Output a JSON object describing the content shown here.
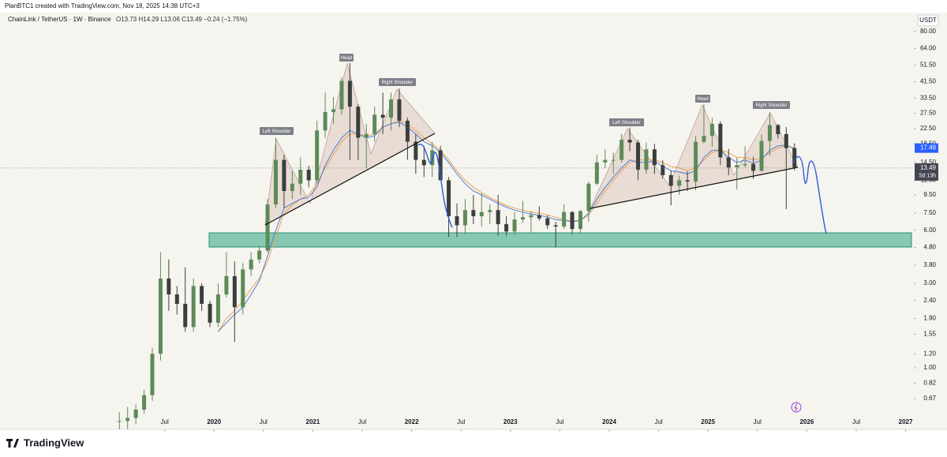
{
  "header": {
    "author_line": "PlanBTC1 created with TradingView.com, Nov 18, 2025 14:38 UTC+3",
    "symbol": "ChainLink / TetherUS · 1W · Binance",
    "ohlc": "O13.73 H14.29 L13.06 C13.49 −0.24 (−1.75%)",
    "currency": "USDT",
    "logo": "TradingView"
  },
  "chart_data": {
    "type": "candlestick",
    "log_scale": true,
    "up_color": "#5d8a58",
    "down_color": "#3b3f3c",
    "ylim": [
      0.545,
      98
    ],
    "yticks": [
      {
        "value": 80,
        "label": "80.00"
      },
      {
        "value": 64,
        "label": "64.00"
      },
      {
        "value": 51.5,
        "label": "51.50"
      },
      {
        "value": 41.5,
        "label": "41.50"
      },
      {
        "value": 33.5,
        "label": "33.50"
      },
      {
        "value": 27.5,
        "label": "27.50"
      },
      {
        "value": 22.5,
        "label": "22.50"
      },
      {
        "value": 18.5,
        "label": "18.50"
      },
      {
        "value": 14.5,
        "label": "14.50"
      },
      {
        "value": 11.5,
        "label": "11.50"
      },
      {
        "value": 9.5,
        "label": "9.50"
      },
      {
        "value": 7.5,
        "label": "7.50"
      },
      {
        "value": 6,
        "label": "6.00"
      },
      {
        "value": 4.8,
        "label": "4.80"
      },
      {
        "value": 3.8,
        "label": "3.80"
      },
      {
        "value": 3,
        "label": "3.00"
      },
      {
        "value": 2.4,
        "label": "2.40"
      },
      {
        "value": 1.9,
        "label": "1.90"
      },
      {
        "value": 1.55,
        "label": "1.55"
      },
      {
        "value": 1.2,
        "label": "1.20"
      },
      {
        "value": 1,
        "label": "1.00"
      },
      {
        "value": 0.82,
        "label": "0.82"
      },
      {
        "value": 0.67,
        "label": "0.67"
      }
    ],
    "xlim": [
      "2017-11",
      "2027-02"
    ],
    "xticks": [
      {
        "value": "2019-07",
        "label": "Jul"
      },
      {
        "value": "2020-01",
        "label": "2020"
      },
      {
        "value": "2020-07",
        "label": "Jul"
      },
      {
        "value": "2021-01",
        "label": "2021"
      },
      {
        "value": "2021-07",
        "label": "Jul"
      },
      {
        "value": "2022-01",
        "label": "2022"
      },
      {
        "value": "2022-07",
        "label": "Jul"
      },
      {
        "value": "2023-01",
        "label": "2023"
      },
      {
        "value": "2023-07",
        "label": "Jul"
      },
      {
        "value": "2024-01",
        "label": "2024"
      },
      {
        "value": "2024-07",
        "label": "Jul"
      },
      {
        "value": "2025-01",
        "label": "2025"
      },
      {
        "value": "2025-07",
        "label": "Jul"
      },
      {
        "value": "2026-01",
        "label": "2026"
      },
      {
        "value": "2026-07",
        "label": "Jul"
      },
      {
        "value": "2027-01",
        "label": "2027"
      }
    ],
    "x": [
      "2019-01",
      "2019-02",
      "2019-03",
      "2019-04",
      "2019-05",
      "2019-06",
      "2019-07",
      "2019-08",
      "2019-09",
      "2019-10",
      "2019-11",
      "2019-12",
      "2020-01",
      "2020-02",
      "2020-03",
      "2020-04",
      "2020-05",
      "2020-06",
      "2020-07",
      "2020-08",
      "2020-09",
      "2020-10",
      "2020-11",
      "2020-12",
      "2021-01",
      "2021-02",
      "2021-03",
      "2021-04",
      "2021-05",
      "2021-06",
      "2021-07",
      "2021-08",
      "2021-09",
      "2021-10",
      "2021-11",
      "2021-12",
      "2022-01",
      "2022-02",
      "2022-03",
      "2022-04",
      "2022-05",
      "2022-06",
      "2022-07",
      "2022-08",
      "2022-09",
      "2022-10",
      "2022-11",
      "2022-12",
      "2023-01",
      "2023-02",
      "2023-03",
      "2023-04",
      "2023-05",
      "2023-06",
      "2023-07",
      "2023-08",
      "2023-09",
      "2023-10",
      "2023-11",
      "2023-12",
      "2024-01",
      "2024-02",
      "2024-03",
      "2024-04",
      "2024-05",
      "2024-06",
      "2024-07",
      "2024-08",
      "2024-09",
      "2024-10",
      "2024-11",
      "2024-12",
      "2025-01",
      "2025-02",
      "2025-03",
      "2025-04",
      "2025-05",
      "2025-06",
      "2025-07",
      "2025-08",
      "2025-09",
      "2025-10",
      "2025-11"
    ],
    "open": [
      0.5,
      0.5,
      0.52,
      0.58,
      0.7,
      1.2,
      3.2,
      2.6,
      2.3,
      1.7,
      2.9,
      2.3,
      1.8,
      2.6,
      3.3,
      2.2,
      3.6,
      4.1,
      4.6,
      8.4,
      15,
      10,
      11,
      13.2,
      11.5,
      22,
      28,
      29,
      42,
      30,
      20,
      21,
      27,
      26,
      33,
      25,
      19,
      15,
      14,
      17,
      11.5,
      7.2,
      6.4,
      7.8,
      7.2,
      7.6,
      7.8,
      6.5,
      5.9,
      6.9,
      7.1,
      7.3,
      7.0,
      6.4,
      6.3,
      7.6,
      6.1,
      7.7,
      11.0,
      14.5,
      15.0,
      15.0,
      19.5,
      18.8,
      13.2,
      17.2,
      14.0,
      12.3,
      10.7,
      11.5,
      11.3,
      19.0,
      20.5,
      24,
      15.5,
      13.6,
      14.0,
      14.2,
      13.0,
      19.2,
      23.6,
      21.0,
      17.5
    ],
    "high": [
      0.56,
      0.6,
      0.62,
      0.75,
      1.3,
      4.5,
      4.1,
      2.9,
      3.7,
      3.2,
      3.0,
      2.4,
      3.0,
      4.5,
      4.0,
      3.9,
      4.5,
      4.9,
      9.0,
      20,
      16,
      13,
      15.5,
      13.9,
      25,
      36,
      34,
      44,
      53,
      31,
      24,
      30,
      36,
      36,
      38,
      26,
      21,
      18,
      19,
      18,
      12,
      8.5,
      9,
      9.5,
      9.7,
      8.4,
      9.5,
      7.2,
      7.6,
      8.8,
      7.7,
      8.2,
      7.3,
      6.7,
      8.4,
      7.7,
      7.8,
      11.3,
      16,
      17.2,
      16.5,
      21,
      22.8,
      19.5,
      18.8,
      18.5,
      14.9,
      13.0,
      12.2,
      12.9,
      20.5,
      30.9,
      26,
      24.8,
      17.3,
      15.4,
      17.9,
      15.6,
      20.8,
      27.9,
      24.0,
      23.0,
      18.6
    ],
    "low": [
      0.45,
      0.45,
      0.48,
      0.55,
      0.65,
      1.1,
      2.1,
      2.0,
      1.6,
      1.6,
      2.1,
      1.7,
      1.7,
      2.5,
      1.4,
      2.0,
      3.3,
      3.9,
      4.5,
      8.0,
      8,
      9,
      9.5,
      10.5,
      11,
      20,
      24,
      27,
      15,
      15,
      13.5,
      19,
      21,
      22,
      23,
      15,
      12.5,
      12,
      12,
      11.5,
      5.5,
      5.5,
      5.7,
      6.5,
      6.3,
      6.5,
      5.6,
      5.6,
      5.6,
      6.6,
      5.8,
      6.8,
      6.1,
      4.8,
      6.1,
      5.7,
      5.8,
      6.7,
      10.8,
      13.5,
      12.5,
      14.5,
      16.8,
      11.5,
      12.5,
      12.5,
      11.8,
      8.3,
      9.5,
      10.0,
      10.1,
      18.6,
      17.8,
      14,
      12.3,
      10.2,
      13.6,
      11.7,
      12.9,
      15.8,
      19.8,
      7.9,
      13.06
    ],
    "close": [
      0.5,
      0.52,
      0.58,
      0.7,
      1.2,
      3.2,
      2.6,
      2.3,
      1.7,
      2.9,
      2.3,
      1.8,
      2.6,
      3.3,
      2.2,
      3.6,
      4.1,
      4.6,
      8.4,
      15,
      10,
      11,
      13.2,
      11.5,
      22,
      28,
      29,
      42,
      30,
      20,
      21,
      27,
      26,
      33,
      25,
      19,
      15,
      14,
      17,
      11.5,
      7.2,
      6.4,
      7.8,
      7.2,
      7.6,
      7.8,
      6.5,
      5.9,
      6.9,
      7.1,
      7.3,
      7.0,
      6.4,
      6.3,
      7.6,
      6.1,
      7.7,
      11.0,
      14.5,
      15.0,
      15.0,
      19.5,
      18.8,
      13.2,
      17.2,
      14.0,
      12.3,
      10.7,
      11.5,
      11.3,
      19.0,
      20.5,
      24,
      15.5,
      13.6,
      14.0,
      14.2,
      13.0,
      19.2,
      23.6,
      21.0,
      17.5,
      13.49
    ],
    "lines": [
      {
        "color": "#f0a050",
        "values": [
          null,
          null,
          null,
          null,
          null,
          null,
          null,
          null,
          null,
          null,
          null,
          null,
          1.6,
          1.9,
          2.1,
          2.4,
          2.8,
          3.2,
          4.0,
          5.5,
          7.5,
          8.3,
          9.0,
          9.5,
          11,
          13.5,
          16,
          19,
          21,
          21,
          20.5,
          21,
          23,
          24,
          25,
          24,
          22,
          20,
          18.5,
          17,
          15,
          13,
          11.5,
          10.5,
          9.8,
          9.2,
          8.7,
          8.3,
          8.0,
          7.8,
          7.6,
          7.5,
          7.3,
          7.1,
          6.9,
          6.8,
          6.8,
          7.3,
          8.5,
          10,
          11.5,
          13,
          14.5,
          15,
          15,
          15,
          14.5,
          13.8,
          13.5,
          13,
          13.5,
          15,
          16.5,
          17,
          16.5,
          15.5,
          15.5,
          15,
          15.3,
          16.5,
          17.5,
          18,
          17.5
        ]
      },
      {
        "color": "#4a7fd4",
        "values": [
          null,
          null,
          null,
          null,
          null,
          null,
          null,
          null,
          null,
          null,
          null,
          null,
          1.6,
          1.8,
          2.0,
          2.2,
          2.6,
          3.1,
          4.3,
          6.0,
          8.0,
          8.5,
          9.0,
          9.2,
          10.5,
          14,
          17,
          20,
          22,
          21,
          20,
          20.5,
          23,
          24,
          24.5,
          23,
          21,
          19,
          18,
          16.5,
          14.5,
          12.5,
          11,
          10,
          9.5,
          9,
          8.5,
          8.1,
          7.8,
          7.6,
          7.4,
          7.3,
          7.1,
          6.9,
          6.8,
          6.7,
          6.8,
          7.5,
          9,
          10.5,
          12,
          13.5,
          15,
          14.5,
          14.5,
          14.8,
          13.8,
          13,
          12.8,
          12.5,
          13,
          15.5,
          17,
          17,
          15.5,
          14.5,
          15,
          14.3,
          15,
          17,
          18,
          18.2,
          17.3
        ]
      }
    ],
    "last_price": {
      "value": 13.49,
      "label": "13.49"
    },
    "countdown": "5d 13h",
    "ma_price": {
      "value": 17.49,
      "label": "17.49"
    },
    "annotations": [
      "Left Shoulder",
      "Head",
      "Right Shoulder",
      "Left Shoulder",
      "Head",
      "Right Shoulder"
    ]
  }
}
